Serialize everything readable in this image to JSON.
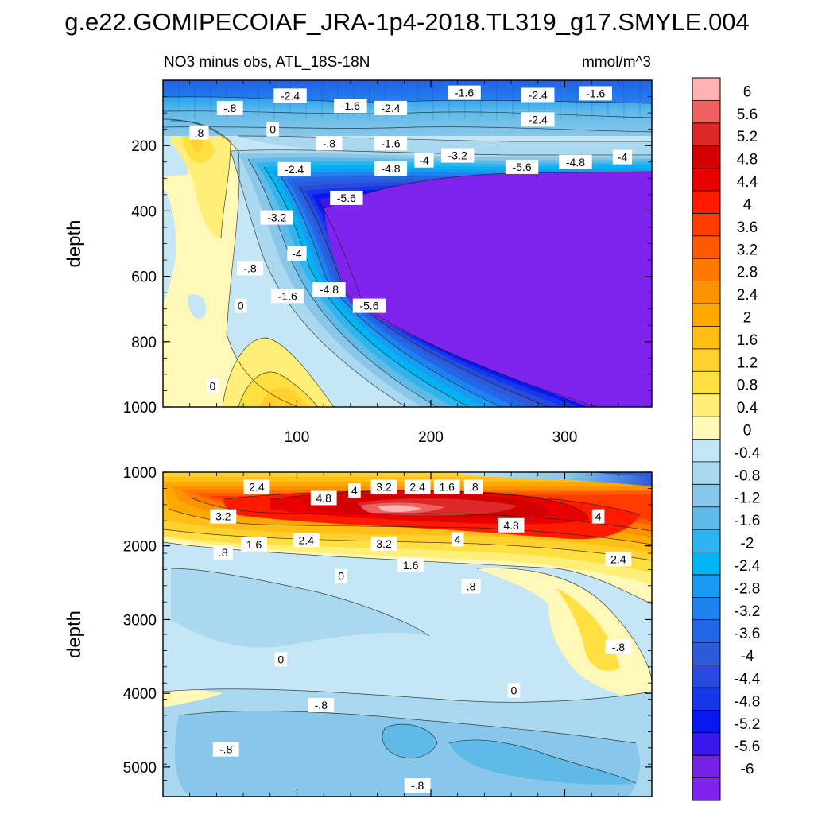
{
  "figure_title": "g.e22.GOMIPECOIAF_JRA-1p4-2018.TL319_g17.SMYLE.004",
  "chart_data": {
    "type": "contour",
    "variable_title": "NO3 minus obs, ATL_18S-18N",
    "units": "mmol/m^3",
    "x_ticks": [
      "100",
      "200",
      "300"
    ],
    "x_tick_values": [
      100,
      200,
      300
    ],
    "xlim": [
      0,
      365
    ],
    "panels": [
      {
        "name": "upper",
        "ylabel": "depth",
        "ylim": [
          1000,
          0
        ],
        "y_ticks": [
          "200",
          "400",
          "600",
          "800",
          "1000"
        ],
        "y_tick_values": [
          200,
          400,
          600,
          800,
          1000
        ],
        "contour_labels": [
          {
            "text": "-2.4",
            "x": 95,
            "y": 47
          },
          {
            "text": "-.8",
            "x": 50,
            "y": 85
          },
          {
            "text": ".8",
            "x": 27,
            "y": 160
          },
          {
            "text": "0",
            "x": 82,
            "y": 150
          },
          {
            "text": "-1.6",
            "x": 140,
            "y": 78
          },
          {
            "text": "-2.4",
            "x": 170,
            "y": 85
          },
          {
            "text": "-1.6",
            "x": 225,
            "y": 38
          },
          {
            "text": "-.8",
            "x": 124,
            "y": 193
          },
          {
            "text": "-1.6",
            "x": 170,
            "y": 193
          },
          {
            "text": "-2.4",
            "x": 280,
            "y": 45
          },
          {
            "text": "-1.6",
            "x": 323,
            "y": 40
          },
          {
            "text": "-2.4",
            "x": 280,
            "y": 120
          },
          {
            "text": "-3.2",
            "x": 220,
            "y": 230
          },
          {
            "text": "-4",
            "x": 195,
            "y": 245
          },
          {
            "text": "-4.8",
            "x": 170,
            "y": 270
          },
          {
            "text": "-5.6",
            "x": 268,
            "y": 265
          },
          {
            "text": "-4.8",
            "x": 308,
            "y": 250
          },
          {
            "text": "-4",
            "x": 343,
            "y": 235
          },
          {
            "text": "-2.4",
            "x": 98,
            "y": 272
          },
          {
            "text": "-3.2",
            "x": 85,
            "y": 420
          },
          {
            "text": "-5.6",
            "x": 137,
            "y": 360
          },
          {
            "text": "-4",
            "x": 100,
            "y": 530
          },
          {
            "text": "-.8",
            "x": 65,
            "y": 575
          },
          {
            "text": "-1.6",
            "x": 93,
            "y": 660
          },
          {
            "text": "-4.8",
            "x": 124,
            "y": 640
          },
          {
            "text": "-5.6",
            "x": 154,
            "y": 690
          },
          {
            "text": "0",
            "x": 58,
            "y": 690
          },
          {
            "text": "0",
            "x": 37,
            "y": 935
          }
        ]
      },
      {
        "name": "lower",
        "ylabel": "depth",
        "ylim": [
          5400,
          1000
        ],
        "y_ticks": [
          "1000",
          "2000",
          "3000",
          "4000",
          "5000"
        ],
        "y_tick_values": [
          1000,
          2000,
          3000,
          4000,
          5000
        ],
        "contour_labels": [
          {
            "text": "2.4",
            "x": 70,
            "y": 1200
          },
          {
            "text": "3.2",
            "x": 45,
            "y": 1600
          },
          {
            "text": "4.8",
            "x": 120,
            "y": 1350
          },
          {
            "text": "4",
            "x": 143,
            "y": 1250
          },
          {
            "text": "3.2",
            "x": 165,
            "y": 1200
          },
          {
            "text": "2.4",
            "x": 190,
            "y": 1200
          },
          {
            "text": "1.6",
            "x": 212,
            "y": 1200
          },
          {
            "text": ".8",
            "x": 232,
            "y": 1200
          },
          {
            "text": "1.6",
            "x": 68,
            "y": 1980
          },
          {
            "text": ".8",
            "x": 45,
            "y": 2090
          },
          {
            "text": "2.4",
            "x": 107,
            "y": 1920
          },
          {
            "text": "3.2",
            "x": 165,
            "y": 1970
          },
          {
            "text": "4",
            "x": 220,
            "y": 1910
          },
          {
            "text": "4.8",
            "x": 260,
            "y": 1720
          },
          {
            "text": "4",
            "x": 325,
            "y": 1600
          },
          {
            "text": "2.4",
            "x": 340,
            "y": 2180
          },
          {
            "text": "1.6",
            "x": 185,
            "y": 2260
          },
          {
            "text": "0",
            "x": 133,
            "y": 2410
          },
          {
            "text": ".8",
            "x": 230,
            "y": 2550
          },
          {
            "text": "-.8",
            "x": 340,
            "y": 3370
          },
          {
            "text": "0",
            "x": 88,
            "y": 3540
          },
          {
            "text": "0",
            "x": 262,
            "y": 3960
          },
          {
            "text": "-.8",
            "x": 118,
            "y": 4160
          },
          {
            "text": "-.8",
            "x": 47,
            "y": 4760
          },
          {
            "text": "-.8",
            "x": 190,
            "y": 5250
          }
        ]
      }
    ],
    "colorbar": {
      "levels": [
        "6",
        "5.6",
        "5.2",
        "4.8",
        "4.4",
        "4",
        "3.6",
        "3.2",
        "2.8",
        "2.4",
        "2",
        "1.6",
        "1.2",
        "0.8",
        "0.4",
        "0",
        "-0.4",
        "-0.8",
        "-1.2",
        "-1.6",
        "-2",
        "-2.4",
        "-2.8",
        "-3.2",
        "-3.6",
        "-4",
        "-4.4",
        "-4.8",
        "-5.2",
        "-5.6",
        "-6"
      ],
      "colors": [
        "#ffb3b3",
        "#f06060",
        "#dd2828",
        "#d20000",
        "#e80000",
        "#ff1a00",
        "#ff3c00",
        "#ff5a00",
        "#ff7800",
        "#ff9200",
        "#ffa800",
        "#ffbf14",
        "#ffd12e",
        "#ffe040",
        "#ffee78",
        "#fff8b8",
        "#c5e6f5",
        "#a9d8ef",
        "#88c6ea",
        "#5fbae8",
        "#2eb4ee",
        "#00b4f2",
        "#1a9af2",
        "#1e82f0",
        "#2366e8",
        "#2d5ad8",
        "#284ae0",
        "#1636ea",
        "#0a18f0",
        "#3a18ec",
        "#7522e6",
        "#7f24ec"
      ]
    }
  }
}
